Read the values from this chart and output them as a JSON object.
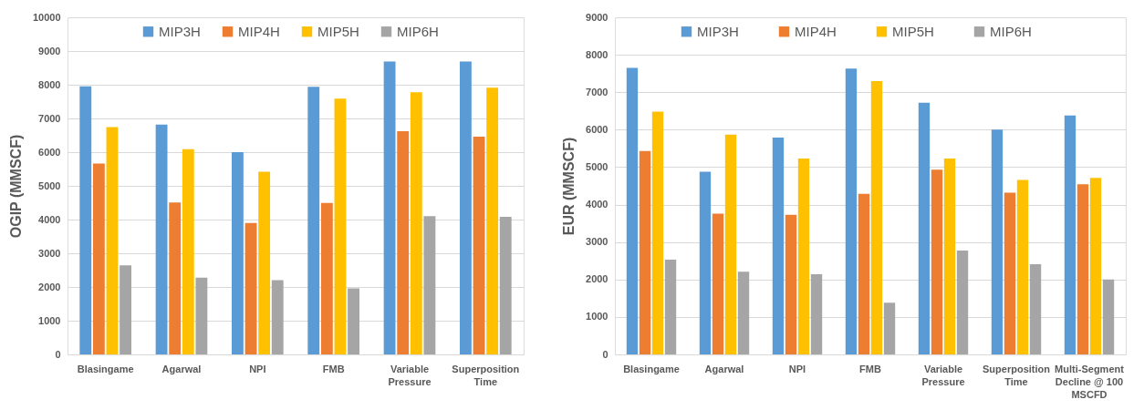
{
  "chart_data": [
    {
      "type": "bar",
      "ylabel": "OGIP (MMSCF)",
      "categories": [
        "Blasingame",
        "Agarwal",
        "NPI",
        "FMB",
        "Variable Pressure",
        "Superposition Time"
      ],
      "series": [
        {
          "name": "MIP3H",
          "color": "#5b9bd5",
          "values": [
            7950,
            6820,
            6000,
            7940,
            8690,
            8690
          ]
        },
        {
          "name": "MIP4H",
          "color": "#ed7d31",
          "values": [
            5660,
            4510,
            3900,
            4490,
            6620,
            6460
          ]
        },
        {
          "name": "MIP5H",
          "color": "#ffc000",
          "values": [
            6740,
            6090,
            5420,
            7590,
            7780,
            7910
          ]
        },
        {
          "name": "MIP6H",
          "color": "#a5a5a5",
          "values": [
            2640,
            2280,
            2200,
            1960,
            4100,
            4080
          ]
        }
      ],
      "ylim": [
        0,
        10000
      ],
      "yticks": [
        0,
        1000,
        2000,
        3000,
        4000,
        5000,
        6000,
        7000,
        8000,
        9000,
        10000
      ],
      "grid": "y",
      "legend": "top"
    },
    {
      "type": "bar",
      "ylabel": "EUR (MMSCF)",
      "categories": [
        "Blasingame",
        "Agarwal",
        "NPI",
        "FMB",
        "Variable Pressure",
        "Superposition Time",
        "Multi-Segment Decline @ 100 MSCFD"
      ],
      "series": [
        {
          "name": "MIP3H",
          "color": "#5b9bd5",
          "values": [
            7650,
            4880,
            5790,
            7630,
            6720,
            6000,
            6380
          ]
        },
        {
          "name": "MIP4H",
          "color": "#ed7d31",
          "values": [
            5430,
            3760,
            3730,
            4290,
            4930,
            4320,
            4540
          ]
        },
        {
          "name": "MIP5H",
          "color": "#ffc000",
          "values": [
            6480,
            5870,
            5230,
            7300,
            5230,
            4660,
            4710
          ]
        },
        {
          "name": "MIP6H",
          "color": "#a5a5a5",
          "values": [
            2530,
            2210,
            2140,
            1380,
            2770,
            2410,
            2000
          ]
        }
      ],
      "ylim": [
        0,
        9000
      ],
      "yticks": [
        0,
        1000,
        2000,
        3000,
        4000,
        5000,
        6000,
        7000,
        8000,
        9000
      ],
      "grid": "y",
      "legend": "top"
    }
  ]
}
